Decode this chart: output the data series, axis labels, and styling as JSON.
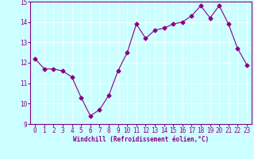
{
  "x": [
    0,
    1,
    2,
    3,
    4,
    5,
    6,
    7,
    8,
    9,
    10,
    11,
    12,
    13,
    14,
    15,
    16,
    17,
    18,
    19,
    20,
    21,
    22,
    23
  ],
  "y": [
    12.2,
    11.7,
    11.7,
    11.6,
    11.3,
    10.3,
    9.4,
    9.7,
    10.4,
    11.6,
    12.5,
    13.9,
    13.2,
    13.6,
    13.7,
    13.9,
    14.0,
    14.3,
    14.8,
    14.2,
    14.8,
    13.9,
    12.7,
    11.9
  ],
  "line_color": "#880088",
  "marker": "D",
  "marker_size": 2.5,
  "bg_color": "#ccffff",
  "grid_color": "#ffffff",
  "xlabel": "Windchill (Refroidissement éolien,°C)",
  "xlabel_color": "#880088",
  "xtick_labels": [
    "0",
    "1",
    "2",
    "3",
    "4",
    "5",
    "6",
    "7",
    "8",
    "9",
    "10",
    "11",
    "12",
    "13",
    "14",
    "15",
    "16",
    "17",
    "18",
    "19",
    "20",
    "21",
    "22",
    "23"
  ],
  "ylim": [
    9,
    15
  ],
  "yticks": [
    9,
    10,
    11,
    12,
    13,
    14,
    15
  ],
  "tick_color": "#880088",
  "spine_color": "#880088",
  "tick_fontsize": 5.5,
  "xlabel_fontsize": 5.5
}
